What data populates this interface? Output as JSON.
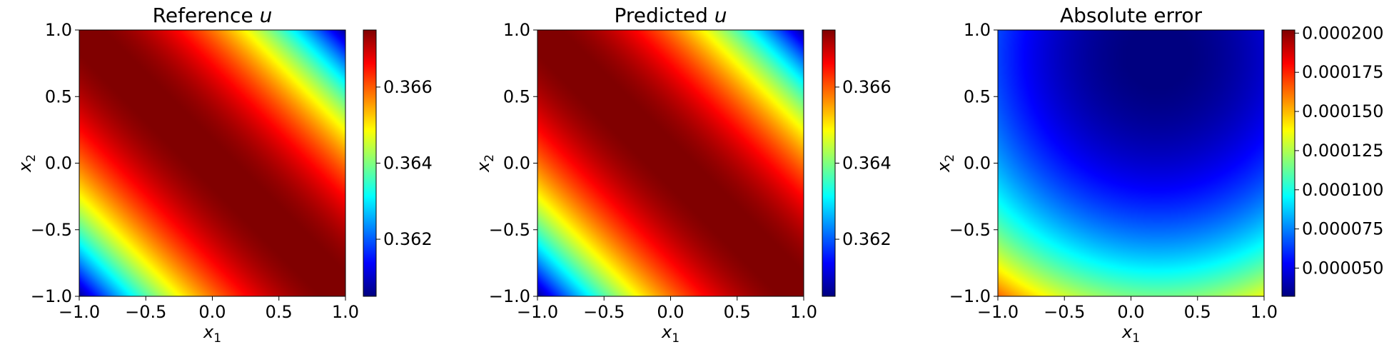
{
  "chart_data": [
    {
      "type": "heatmap",
      "title_text": "Reference ",
      "title_var": "u",
      "xlabel_base": "x",
      "xlabel_sub": "1",
      "ylabel_base": "x",
      "ylabel_sub": "2",
      "xlim": [
        -1.0,
        1.0
      ],
      "ylim": [
        -1.0,
        1.0
      ],
      "xticks": [
        "−1.0",
        "−0.5",
        "0.0",
        "0.5",
        "1.0"
      ],
      "yticks": [
        "−1.0",
        "−0.5",
        "0.0",
        "0.5",
        "1.0"
      ],
      "field": "u(x1,x2) = 0.36755 - 0.0069 * ((x1 + x2) / 2)^2; smooth diagonal ridge along x1 + x2 = 0",
      "colormap": "jet",
      "colorbar_range": [
        0.3605,
        0.3675
      ],
      "colorbar_ticks": [
        0.362,
        0.364,
        0.366
      ],
      "colorbar_ticklabels": [
        "0.362",
        "0.364",
        "0.366"
      ]
    },
    {
      "type": "heatmap",
      "title_text": "Predicted ",
      "title_var": "u",
      "xlabel_base": "x",
      "xlabel_sub": "1",
      "ylabel_base": "x",
      "ylabel_sub": "2",
      "xlim": [
        -1.0,
        1.0
      ],
      "ylim": [
        -1.0,
        1.0
      ],
      "xticks": [
        "−1.0",
        "−0.5",
        "0.0",
        "0.5",
        "1.0"
      ],
      "yticks": [
        "−1.0",
        "−0.5",
        "0.0",
        "0.5",
        "1.0"
      ],
      "field": "u(x1,x2) = 0.36755 - 0.0069 * ((x1 + x2) / 2)^2; visually identical to reference",
      "colormap": "jet",
      "colorbar_range": [
        0.3605,
        0.3675
      ],
      "colorbar_ticks": [
        0.362,
        0.364,
        0.366
      ],
      "colorbar_ticklabels": [
        "0.362",
        "0.364",
        "0.366"
      ]
    },
    {
      "type": "heatmap",
      "title_text": "Absolute error",
      "title_var": "",
      "xlabel_base": "x",
      "xlabel_sub": "1",
      "ylabel_base": "x",
      "ylabel_sub": "2",
      "xlim": [
        -1.0,
        1.0
      ],
      "ylim": [
        -1.0,
        1.0
      ],
      "xticks": [
        "−1.0",
        "−0.5",
        "0.0",
        "0.5",
        "1.0"
      ],
      "yticks": [
        "−1.0",
        "−0.5",
        "0.0",
        "0.5",
        "1.0"
      ],
      "field": "error minimum ~0.00003 near (0.2, 0.8), rising radially to ~0.0002 at (-1, -1)",
      "colormap": "jet",
      "colorbar_range": [
        3.2e-05,
        0.000202
      ],
      "colorbar_ticks": [
        5e-05,
        7.5e-05,
        0.0001,
        0.000125,
        0.00015,
        0.000175,
        0.0002
      ],
      "colorbar_ticklabels": [
        "0.000050",
        "0.000075",
        "0.000100",
        "0.000125",
        "0.000150",
        "0.000175",
        "0.000200"
      ]
    }
  ]
}
